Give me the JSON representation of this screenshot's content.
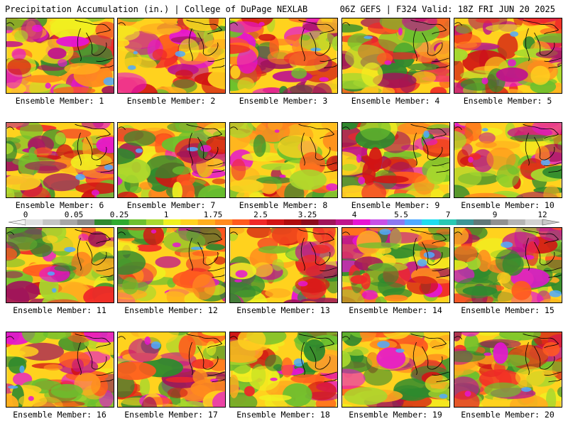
{
  "header": {
    "left": "Precipitation Accumulation (in.) | College of DuPage NEXLAB",
    "right": "06Z GEFS | F324 Valid: 18Z FRI JUN 20 2025"
  },
  "panels": [
    {
      "label": "Ensemble Member: 1"
    },
    {
      "label": "Ensemble Member: 2"
    },
    {
      "label": "Ensemble Member: 3"
    },
    {
      "label": "Ensemble Member: 4"
    },
    {
      "label": "Ensemble Member: 5"
    },
    {
      "label": "Ensemble Member: 6"
    },
    {
      "label": "Ensemble Member: 7"
    },
    {
      "label": "Ensemble Member: 8"
    },
    {
      "label": "Ensemble Member: 9"
    },
    {
      "label": "Ensemble Member: 10"
    },
    {
      "label": "Ensemble Member: 11"
    },
    {
      "label": "Ensemble Member: 12"
    },
    {
      "label": "Ensemble Member: 13"
    },
    {
      "label": "Ensemble Member: 14"
    },
    {
      "label": "Ensemble Member: 15"
    },
    {
      "label": "Ensemble Member: 16"
    },
    {
      "label": "Ensemble Member: 17"
    },
    {
      "label": "Ensemble Member: 18"
    },
    {
      "label": "Ensemble Member: 19"
    },
    {
      "label": "Ensemble Member: 20"
    }
  ],
  "colorbar": {
    "tick_labels": [
      "0",
      "0.05",
      "0.25",
      "1",
      "1.75",
      "2.5",
      "3.25",
      "4",
      "5.5",
      "7",
      "9",
      "12"
    ],
    "colors": [
      "#e0e0e0",
      "#c4c4c4",
      "#a6a6a6",
      "#8a8a8a",
      "#2e8a2e",
      "#2eaa2e",
      "#6cc02e",
      "#a8d82e",
      "#f0f020",
      "#ffd21e",
      "#ffae1e",
      "#ff8a1e",
      "#ff5a1e",
      "#f02828",
      "#d21414",
      "#b00c0c",
      "#8c0c1c",
      "#a0145a",
      "#c0148c",
      "#e614d2",
      "#c850e6",
      "#8c78f0",
      "#50aaff",
      "#1edcf0",
      "#28c8b4",
      "#3c9696",
      "#607878",
      "#909090",
      "#b4b4b4",
      "#d2d2d2"
    ]
  }
}
